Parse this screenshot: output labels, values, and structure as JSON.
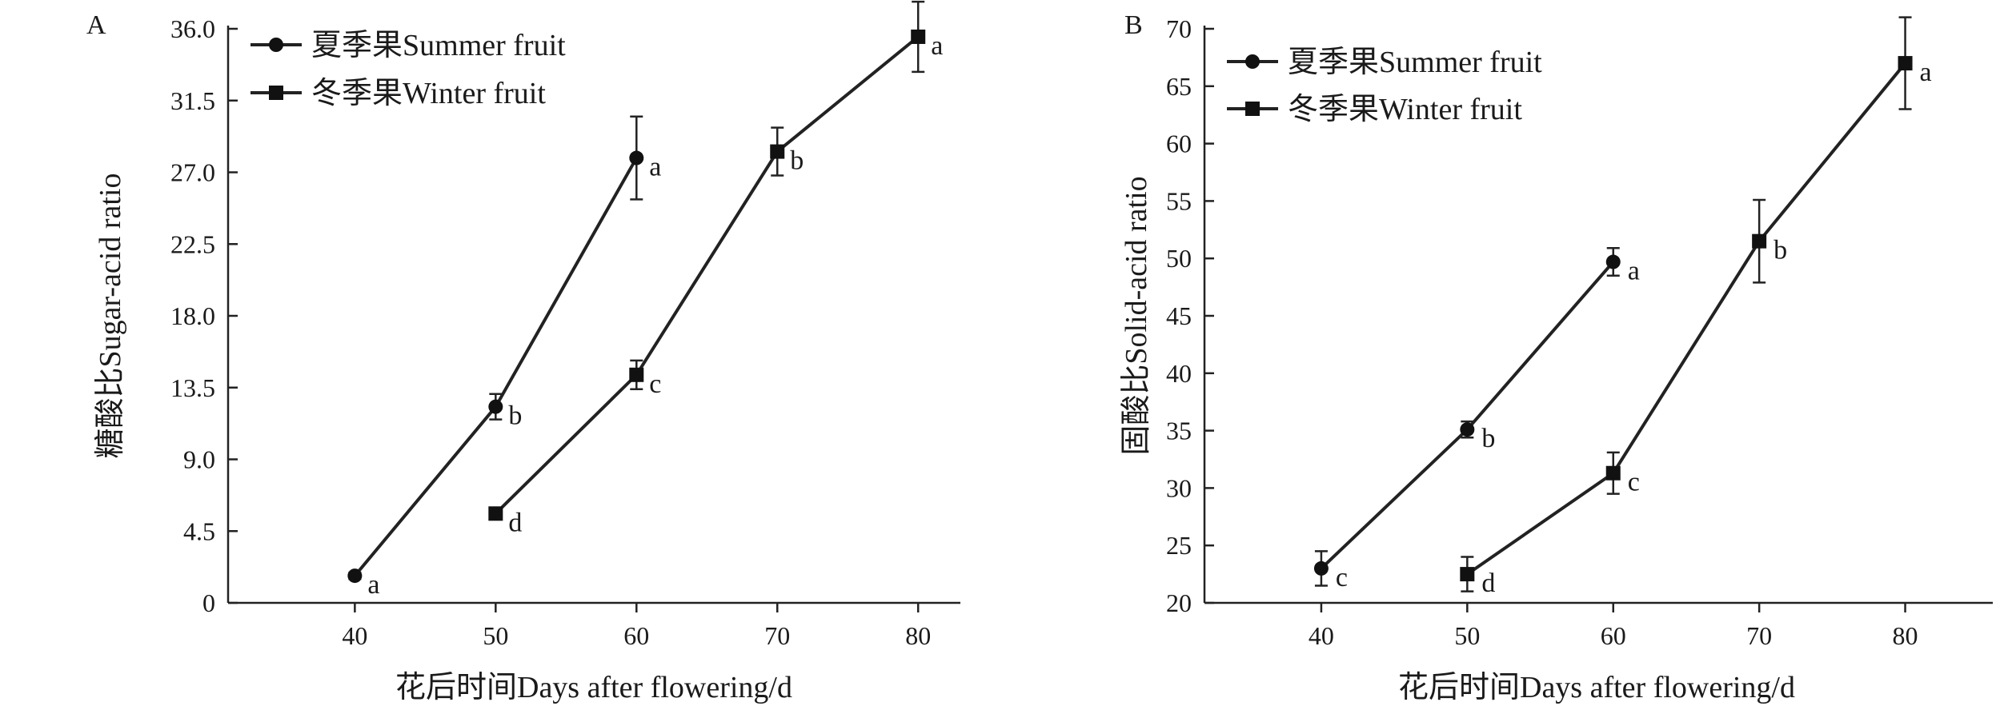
{
  "chart_data": [
    {
      "type": "line",
      "panel": "A",
      "xlabel": "花后时间Days after flowering/d",
      "ylabel": "糖酸比Sugar-acid ratio",
      "xticks": [
        40,
        50,
        60,
        70,
        80
      ],
      "yticks": [
        "0",
        "4.5",
        "9.0",
        "13.5",
        "18.0",
        "22.5",
        "27.0",
        "31.5",
        "36.0"
      ],
      "xlim": [
        31,
        83
      ],
      "ylim": [
        0,
        36
      ],
      "legend_position": "top-left",
      "series": [
        {
          "name": "夏季果Summer fruit",
          "marker": "circle",
          "x": [
            40,
            50,
            60
          ],
          "y": [
            1.7,
            12.3,
            27.9
          ],
          "err": [
            0.2,
            0.8,
            2.6
          ],
          "labels": [
            "a",
            "b",
            "a"
          ]
        },
        {
          "name": "冬季果Winter fruit",
          "marker": "square",
          "x": [
            50,
            60,
            70,
            80
          ],
          "y": [
            5.6,
            14.3,
            28.3,
            35.5
          ],
          "err": [
            0.2,
            0.9,
            1.5,
            2.2
          ],
          "labels": [
            "d",
            "c",
            "b",
            "a"
          ]
        }
      ]
    },
    {
      "type": "line",
      "panel": "B",
      "xlabel": "花后时间Days after flowering/d",
      "ylabel": "固酸比Solid-acid ratio",
      "xticks": [
        40,
        50,
        60,
        70,
        80
      ],
      "yticks": [
        "20",
        "25",
        "30",
        "35",
        "40",
        "45",
        "50",
        "55",
        "60",
        "65",
        "70"
      ],
      "xlim": [
        32,
        86
      ],
      "ylim": [
        20,
        70
      ],
      "legend_position": "top-left",
      "series": [
        {
          "name": "夏季果Summer fruit",
          "marker": "circle",
          "x": [
            40,
            50,
            60
          ],
          "y": [
            23.0,
            35.1,
            49.7
          ],
          "err": [
            1.5,
            0.7,
            1.2
          ],
          "labels": [
            "c",
            "b",
            "a"
          ]
        },
        {
          "name": "冬季果Winter fruit",
          "marker": "square",
          "x": [
            50,
            60,
            70,
            80
          ],
          "y": [
            22.5,
            31.3,
            51.5,
            67.0
          ],
          "err": [
            1.5,
            1.8,
            3.6,
            4.0
          ],
          "labels": [
            "d",
            "c",
            "b",
            "a"
          ]
        }
      ]
    }
  ]
}
